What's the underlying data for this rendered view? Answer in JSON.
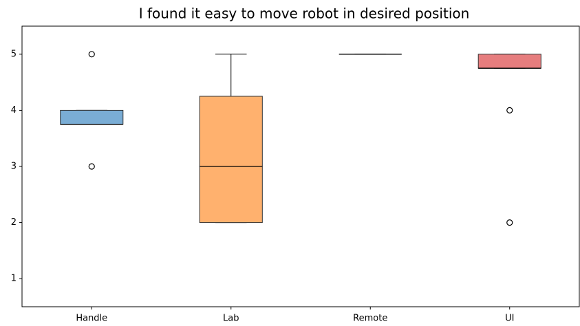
{
  "chart_data": {
    "type": "box",
    "title": "I found it easy to move robot in desired position",
    "categories": [
      "Handle",
      "Lab",
      "Remote",
      "UI"
    ],
    "boxes": [
      {
        "whislo": 3.75,
        "q1": 3.75,
        "median": 3.75,
        "q3": 4,
        "whishi": 4,
        "fliers": [
          5,
          3
        ],
        "color": "#7aadd5"
      },
      {
        "whislo": 2,
        "q1": 2,
        "median": 3,
        "q3": 4.25,
        "whishi": 5,
        "fliers": [],
        "color": "#ffb16e"
      },
      {
        "whislo": 5,
        "q1": 5,
        "median": 5,
        "q3": 5,
        "whishi": 5,
        "fliers": [],
        "color": "#7fc97f"
      },
      {
        "whislo": 4.75,
        "q1": 4.75,
        "median": 4.75,
        "q3": 5,
        "whishi": 5,
        "fliers": [
          4,
          2
        ],
        "color": "#e67d7e"
      }
    ],
    "ylim": [
      0.5,
      5.5
    ],
    "yticks": [
      1,
      2,
      3,
      4,
      5
    ]
  }
}
